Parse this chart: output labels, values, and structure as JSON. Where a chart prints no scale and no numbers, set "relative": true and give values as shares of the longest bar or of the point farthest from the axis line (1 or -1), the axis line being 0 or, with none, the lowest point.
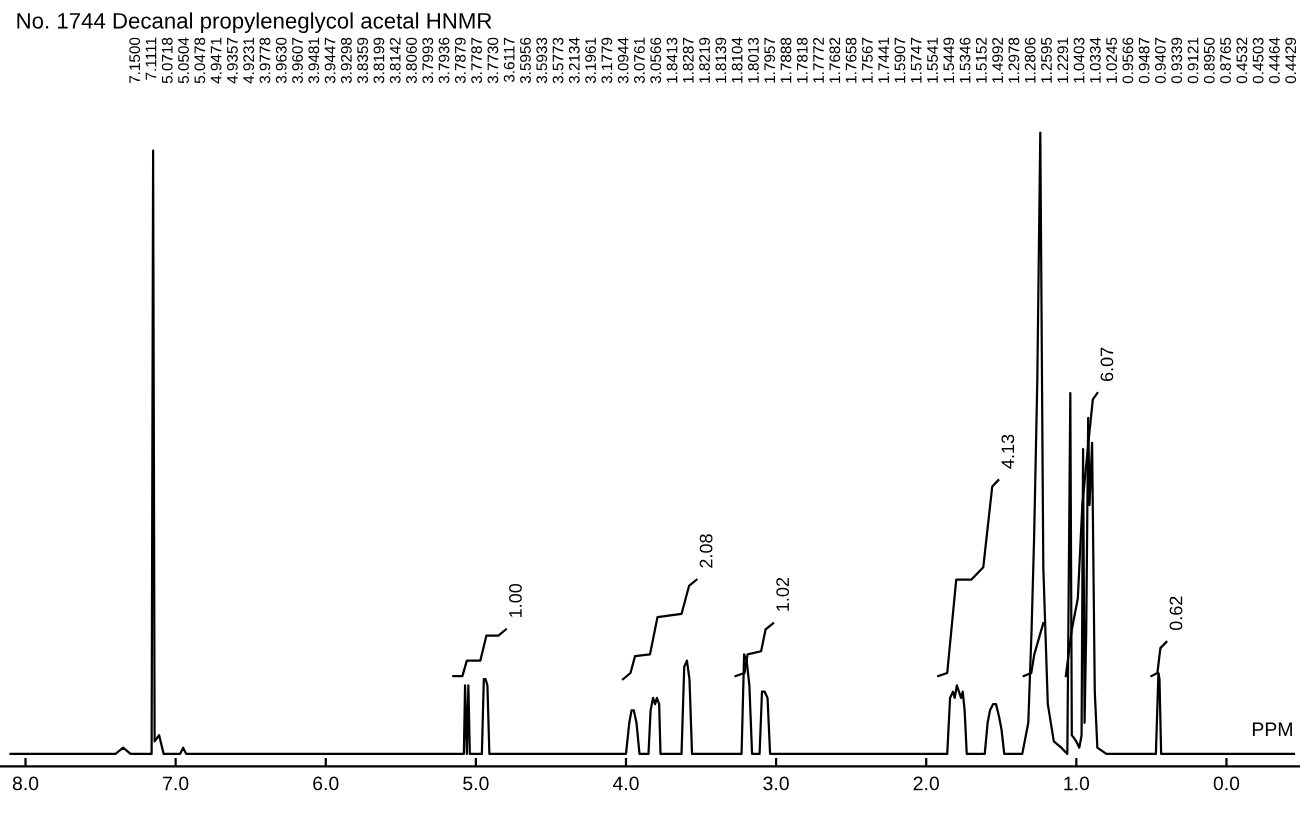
{
  "chart_data": {
    "type": "line",
    "title": "No. 1744 Decanal propyleneglycol acetal HNMR",
    "xlabel": "PPM",
    "relative": true,
    "tick_labels": "x",
    "grid": false,
    "legend": false,
    "xlim": [
      8.17,
      -0.49
    ],
    "xticks": [
      {
        "value": 8,
        "label": "8.0"
      },
      {
        "value": 7,
        "label": "7.0"
      },
      {
        "value": 6,
        "label": "6.0"
      },
      {
        "value": 5,
        "label": "5.0"
      },
      {
        "value": 4,
        "label": "4.0"
      },
      {
        "value": 3,
        "label": "3.0"
      },
      {
        "value": 2,
        "label": "2.0"
      },
      {
        "value": 1,
        "label": "1.0"
      },
      {
        "value": 0,
        "label": "0.0"
      }
    ],
    "series": [
      {
        "color": "#000000",
        "x": [
          8.1,
          7.4,
          7.35,
          7.3,
          7.2,
          7.16,
          7.15,
          7.14,
          7.11,
          7.08,
          6.97,
          6.95,
          6.93,
          5.1,
          5.08,
          5.072,
          5.06,
          5.05,
          5.04,
          4.96,
          4.947,
          4.935,
          4.923,
          4.91,
          4.0,
          3.978,
          3.963,
          3.948,
          3.93,
          3.91,
          3.85,
          3.836,
          3.82,
          3.806,
          3.794,
          3.779,
          3.77,
          3.63,
          3.612,
          3.594,
          3.577,
          3.56,
          3.23,
          3.213,
          3.196,
          3.178,
          3.16,
          3.11,
          3.094,
          3.076,
          3.057,
          3.04,
          1.86,
          1.841,
          1.822,
          1.81,
          1.796,
          1.782,
          1.768,
          1.757,
          1.744,
          1.73,
          1.61,
          1.591,
          1.575,
          1.554,
          1.535,
          1.515,
          1.499,
          1.48,
          1.36,
          1.32,
          1.298,
          1.281,
          1.26,
          1.24,
          1.22,
          1.19,
          1.15,
          1.1,
          1.06,
          1.04,
          1.03,
          1.0,
          0.98,
          0.965,
          0.955,
          0.945,
          0.934,
          0.921,
          0.912,
          0.895,
          0.877,
          0.86,
          0.8,
          0.47,
          0.453,
          0.446,
          0.435,
          -0.45
        ],
        "values": [
          0,
          0,
          0.01,
          0,
          0,
          0,
          0.97,
          0.02,
          0.03,
          0,
          0,
          0.01,
          0,
          0,
          0,
          0.11,
          0,
          0.11,
          0,
          0,
          0.12,
          0.12,
          0.11,
          0,
          0,
          0.05,
          0.07,
          0.07,
          0.05,
          0,
          0,
          0.07,
          0.09,
          0.08,
          0.09,
          0.08,
          0,
          0,
          0.14,
          0.15,
          0.12,
          0,
          0,
          0.16,
          0.15,
          0.11,
          0,
          0,
          0.1,
          0.1,
          0.09,
          0,
          0,
          0.09,
          0.1,
          0.09,
          0.11,
          0.1,
          0.09,
          0.1,
          0.07,
          0,
          0,
          0.05,
          0.07,
          0.08,
          0.08,
          0.06,
          0.04,
          0,
          0,
          0.05,
          0.2,
          0.35,
          0.6,
          1.0,
          0.3,
          0.08,
          0.02,
          0.01,
          0,
          0.58,
          0.03,
          0.02,
          0.01,
          0.03,
          0.49,
          0.05,
          0.2,
          0.54,
          0.4,
          0.5,
          0.1,
          0.01,
          0,
          0,
          0.13,
          0.12,
          0,
          0
        ]
      },
      {
        "color": "#000000",
        "x": [
          5.15,
          5.09,
          5.06,
          4.97,
          4.93,
          4.85,
          4.8
        ],
        "values": [
          0.125,
          0.125,
          0.15,
          0.15,
          0.19,
          0.19,
          0.2
        ]
      },
      {
        "color": "#000000",
        "x": [
          4.02,
          3.97,
          3.94,
          3.84,
          3.79,
          3.63,
          3.58,
          3.53
        ],
        "values": [
          0.12,
          0.13,
          0.157,
          0.16,
          0.22,
          0.225,
          0.27,
          0.28
        ]
      },
      {
        "color": "#000000",
        "x": [
          3.27,
          3.21,
          3.19,
          3.1,
          3.07,
          3.02
        ],
        "values": [
          0.125,
          0.13,
          0.16,
          0.165,
          0.2,
          0.21
        ]
      },
      {
        "color": "#000000",
        "x": [
          1.92,
          1.86,
          1.8,
          1.7,
          1.62,
          1.56,
          1.52
        ],
        "values": [
          0.125,
          0.13,
          0.28,
          0.28,
          0.3,
          0.43,
          0.44
        ]
      },
      {
        "color": "#000000",
        "x": [
          1.35,
          1.3,
          1.28,
          1.22
        ],
        "values": [
          0.125,
          0.13,
          0.16,
          0.21
        ]
      },
      {
        "color": "#000000",
        "x": [
          1.07,
          1.03,
          0.99,
          0.96,
          0.92,
          0.89,
          0.86
        ],
        "values": [
          0.125,
          0.2,
          0.25,
          0.4,
          0.5,
          0.57,
          0.58
        ]
      },
      {
        "color": "#000000",
        "x": [
          0.5,
          0.46,
          0.44,
          0.4
        ],
        "values": [
          0.125,
          0.13,
          0.17,
          0.18
        ]
      }
    ],
    "annotations": [
      "7.1500",
      "7.1111",
      "5.0718",
      "5.0504",
      "5.0478",
      "4.9471",
      "4.9357",
      "4.9231",
      "3.9778",
      "3.9630",
      "3.9607",
      "3.9481",
      "3.9447",
      "3.9298",
      "3.8359",
      "3.8199",
      "3.8142",
      "3.8060",
      "3.7993",
      "3.7936",
      "3.7879",
      "3.7787",
      "3.7730",
      "3.6117",
      "3.5956",
      "3.5933",
      "3.5773",
      "3.2134",
      "3.1961",
      "3.1779",
      "3.0944",
      "3.0761",
      "3.0566",
      "1.8413",
      "1.8287",
      "1.8219",
      "1.8139",
      "1.8104",
      "1.8013",
      "1.7957",
      "1.7888",
      "1.7818",
      "1.7772",
      "1.7682",
      "1.7658",
      "1.7567",
      "1.7441",
      "1.5907",
      "1.5747",
      "1.5541",
      "1.5449",
      "1.5346",
      "1.5152",
      "1.4992",
      "1.2978",
      "1.2806",
      "1.2595",
      "1.2291",
      "1.0403",
      "1.0334",
      "1.0245",
      "0.9566",
      "0.9487",
      "0.9407",
      "0.9339",
      "0.9121",
      "0.8950",
      "0.8765",
      "0.4532",
      "0.4503",
      "0.4464",
      "0.4429",
      {
        "text": "1.00",
        "x": 4.8,
        "y": 0.2
      },
      {
        "text": "2.08",
        "x": 3.53,
        "y": 0.28
      },
      {
        "text": "1.02",
        "x": 3.02,
        "y": 0.21
      },
      {
        "text": "4.13",
        "x": 1.52,
        "y": 0.44
      },
      {
        "text": "6.07",
        "x": 0.86,
        "y": 0.58
      },
      {
        "text": "0.62",
        "x": 0.4,
        "y": 0.18
      }
    ]
  }
}
